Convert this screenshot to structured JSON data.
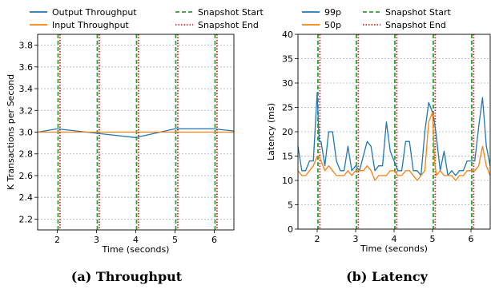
{
  "chart_data": [
    {
      "type": "line",
      "caption": "(a) Throughput",
      "xlabel": "Time (seconds)",
      "ylabel": "K Transactions per Second",
      "xlim": [
        1.5,
        6.5
      ],
      "ylim": [
        2.1,
        3.9
      ],
      "xticks": [
        "2",
        "3",
        "4",
        "5",
        "6"
      ],
      "yticks": [
        "2.2",
        "2.4",
        "2.6",
        "2.8",
        "3.0",
        "3.2",
        "3.4",
        "3.6",
        "3.8"
      ],
      "grid": true,
      "legend_position": "top",
      "series": [
        {
          "name": "Output Throughput",
          "color": "#1f77b4",
          "x": [
            1.5,
            2,
            3,
            4,
            5,
            6,
            6.5
          ],
          "y": [
            3.0,
            3.03,
            2.99,
            2.95,
            3.03,
            3.03,
            3.01
          ]
        },
        {
          "name": "Input Throughput",
          "color": "#ff7f0e",
          "x": [
            1.5,
            6.5
          ],
          "y": [
            3.0,
            3.0
          ]
        }
      ],
      "markers": [
        {
          "name": "Snapshot Start",
          "color": "#2ca02c",
          "style": "dashed",
          "x": [
            2.02,
            3.02,
            4.02,
            5.02,
            6.02
          ]
        },
        {
          "name": "Snapshot End",
          "color": "#d62728",
          "style": "dotted",
          "x": [
            2.07,
            3.07,
            4.07,
            5.07,
            6.07
          ]
        }
      ]
    },
    {
      "type": "line",
      "caption": "(b) Latency",
      "xlabel": "Time (seconds)",
      "ylabel": "Latency (ms)",
      "xlim": [
        1.5,
        6.5
      ],
      "ylim": [
        0,
        40
      ],
      "xticks": [
        "2",
        "3",
        "4",
        "5",
        "6"
      ],
      "yticks": [
        "0",
        "5",
        "10",
        "15",
        "20",
        "25",
        "30",
        "35",
        "40"
      ],
      "grid": true,
      "legend_position": "top",
      "series": [
        {
          "name": "99p",
          "color": "#1f77b4",
          "x": [
            1.5,
            1.6,
            1.7,
            1.8,
            1.9,
            2.0,
            2.05,
            2.1,
            2.2,
            2.3,
            2.4,
            2.5,
            2.6,
            2.7,
            2.8,
            2.9,
            3.0,
            3.1,
            3.2,
            3.3,
            3.4,
            3.5,
            3.6,
            3.7,
            3.8,
            3.9,
            4.0,
            4.1,
            4.2,
            4.3,
            4.4,
            4.5,
            4.6,
            4.7,
            4.8,
            4.9,
            5.0,
            5.05,
            5.1,
            5.2,
            5.3,
            5.4,
            5.5,
            5.6,
            5.7,
            5.8,
            5.9,
            6.0,
            6.1,
            6.2,
            6.3,
            6.4,
            6.5
          ],
          "y": [
            17,
            12,
            12,
            14,
            14,
            28,
            18,
            18,
            13,
            20,
            20,
            14,
            12,
            12,
            17,
            12,
            13,
            12,
            15,
            18,
            17,
            12,
            13,
            13,
            22,
            16,
            14,
            12,
            12,
            18,
            18,
            12,
            12,
            11,
            20,
            26,
            24,
            22,
            19,
            12,
            16,
            11,
            12,
            11,
            12,
            12,
            14,
            14,
            14,
            21,
            27,
            17,
            13
          ]
        },
        {
          "name": "50p",
          "color": "#ff7f0e",
          "x": [
            1.5,
            1.6,
            1.7,
            1.8,
            1.9,
            2.0,
            2.05,
            2.1,
            2.2,
            2.3,
            2.4,
            2.5,
            2.6,
            2.7,
            2.8,
            2.9,
            3.0,
            3.1,
            3.2,
            3.3,
            3.4,
            3.5,
            3.6,
            3.7,
            3.8,
            3.9,
            4.0,
            4.1,
            4.2,
            4.3,
            4.4,
            4.5,
            4.6,
            4.7,
            4.8,
            4.9,
            5.0,
            5.05,
            5.1,
            5.2,
            5.3,
            5.4,
            5.5,
            5.6,
            5.7,
            5.8,
            5.9,
            6.0,
            6.1,
            6.2,
            6.3,
            6.4,
            6.5
          ],
          "y": [
            12,
            11,
            11,
            12,
            13,
            15,
            15,
            14,
            12,
            13,
            12,
            11,
            11,
            11,
            12,
            11,
            12,
            12,
            12,
            13,
            12,
            10,
            11,
            11,
            11,
            12,
            12,
            11,
            11,
            12,
            12,
            11,
            10,
            11,
            12,
            22,
            24,
            14,
            11,
            12,
            11,
            11,
            11,
            10,
            11,
            11,
            12,
            12,
            12,
            13,
            17,
            13,
            11
          ]
        }
      ],
      "markers": [
        {
          "name": "Snapshot Start",
          "color": "#2ca02c",
          "style": "dashed",
          "x": [
            2.02,
            3.02,
            4.02,
            5.02,
            6.02
          ]
        },
        {
          "name": "Snapshot End",
          "color": "#d62728",
          "style": "dotted",
          "x": [
            2.07,
            3.07,
            4.07,
            5.07,
            6.07
          ]
        }
      ]
    }
  ]
}
